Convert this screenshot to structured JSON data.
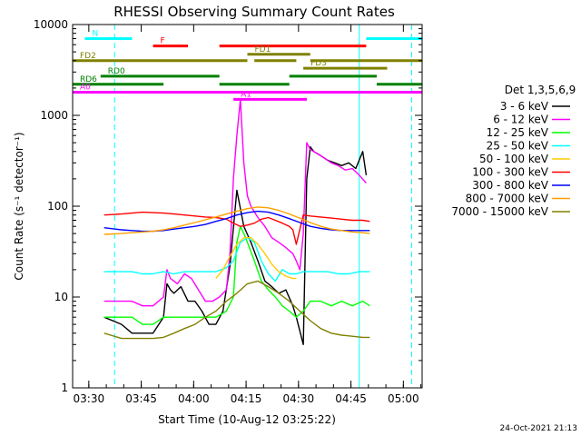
{
  "chart_data": {
    "type": "line",
    "title": "RHESSI Observing Summary Count Rates",
    "xlabel": "Start Time (10-Aug-12 03:25:22)",
    "ylabel": "Count Rate (s⁻¹ detector⁻¹)",
    "ylog": true,
    "ylim": [
      1,
      10000
    ],
    "xlim_minutes_after_0325": [
      0,
      100
    ],
    "x_ticks": [
      "03:30",
      "03:45",
      "04:00",
      "04:15",
      "04:30",
      "04:45",
      "05:00"
    ],
    "y_ticks": [
      "1",
      "10",
      "100",
      "1000",
      "10000"
    ],
    "legend_title": "Det 1,3,5,6,9",
    "legend_position": "right",
    "footer_timestamp": "24-Oct-2021 21:13",
    "flags": [
      {
        "label": "N",
        "color": "#00ffff",
        "ranges": [
          [
            3.5,
            17
          ],
          [
            84,
            100
          ]
        ],
        "level": 7000
      },
      {
        "label": "F",
        "color": "#ff0000",
        "ranges": [
          [
            23,
            33
          ],
          [
            42,
            84
          ]
        ],
        "level": 5800
      },
      {
        "label": "FD1",
        "color": "#808000",
        "ranges": [
          [
            50,
            68
          ]
        ],
        "level": 4700
      },
      {
        "label": "FD2",
        "color": "#808000",
        "ranges": [
          [
            0,
            50
          ],
          [
            52,
            64
          ],
          [
            68,
            100
          ]
        ],
        "level": 4000
      },
      {
        "label": "FD3",
        "color": "#808000",
        "ranges": [
          [
            66,
            90
          ]
        ],
        "level": 3300
      },
      {
        "label": "RD0",
        "color": "#008000",
        "ranges": [
          [
            8,
            42
          ],
          [
            62,
            87
          ]
        ],
        "level": 2700
      },
      {
        "label": "RD6",
        "color": "#008000",
        "ranges": [
          [
            0,
            26
          ],
          [
            42,
            62
          ],
          [
            87,
            100
          ]
        ],
        "level": 2200
      },
      {
        "label": "A0",
        "color": "#ff00ff",
        "ranges": [
          [
            0,
            100
          ]
        ],
        "level": 1800
      },
      {
        "label": "A1",
        "color": "#ff00ff",
        "ranges": [
          [
            46,
            67
          ]
        ],
        "level": 1500
      }
    ],
    "series": [
      {
        "name": "3 - 6 keV",
        "color": "#000000",
        "x": [
          9,
          14,
          17,
          20,
          23,
          26,
          27,
          28,
          29,
          31,
          33,
          35,
          37,
          39,
          41,
          43,
          45,
          47,
          49,
          51,
          53,
          55,
          57,
          59,
          61,
          63,
          64,
          66,
          67,
          68,
          69,
          71,
          73,
          75,
          77,
          79,
          81,
          83,
          84
        ],
        "y": [
          6,
          5,
          4,
          4,
          4,
          6,
          14,
          12,
          11,
          13,
          9,
          9,
          7,
          5,
          5,
          7,
          22,
          150,
          60,
          40,
          25,
          15,
          13,
          11,
          12,
          8,
          6,
          3,
          200,
          450,
          400,
          360,
          320,
          300,
          280,
          300,
          260,
          400,
          220
        ]
      },
      {
        "name": "6 - 12 keV",
        "color": "#ff00ff",
        "x": [
          9,
          14,
          17,
          20,
          23,
          26,
          27,
          28,
          30,
          32,
          34,
          36,
          38,
          40,
          42,
          44,
          45,
          46,
          47,
          48,
          49,
          50,
          51,
          53,
          55,
          57,
          59,
          61,
          63,
          64,
          65,
          66,
          67,
          68,
          70,
          72,
          74,
          76,
          78,
          80,
          82,
          84
        ],
        "y": [
          9,
          9,
          9,
          8,
          8,
          10,
          20,
          16,
          14,
          18,
          16,
          12,
          9,
          9,
          10,
          12,
          30,
          200,
          600,
          1500,
          300,
          130,
          100,
          75,
          60,
          45,
          40,
          35,
          30,
          25,
          20,
          50,
          500,
          420,
          380,
          340,
          300,
          280,
          250,
          260,
          220,
          180
        ]
      },
      {
        "name": "12 - 25 keV",
        "color": "#00ff00",
        "x": [
          9,
          14,
          17,
          20,
          23,
          26,
          29,
          32,
          35,
          38,
          41,
          44,
          46,
          47,
          48,
          49,
          50,
          52,
          54,
          56,
          58,
          60,
          62,
          64,
          66,
          68,
          71,
          74,
          77,
          80,
          83,
          85
        ],
        "y": [
          6,
          6,
          6,
          5,
          5,
          6,
          6,
          6,
          6,
          6,
          6,
          7,
          10,
          40,
          60,
          50,
          40,
          25,
          15,
          12,
          10,
          8,
          7,
          6,
          7,
          9,
          9,
          8,
          9,
          8,
          9,
          8
        ]
      },
      {
        "name": "25 - 50 keV",
        "color": "#00ffff",
        "x": [
          9,
          14,
          17,
          20,
          23,
          26,
          29,
          32,
          35,
          38,
          41,
          44,
          46,
          48,
          50,
          52,
          54,
          56,
          58,
          60,
          62,
          64,
          66,
          68,
          70,
          73,
          76,
          79,
          82,
          85
        ],
        "y": [
          19,
          19,
          19,
          18,
          18,
          19,
          18,
          19,
          19,
          19,
          19,
          21,
          25,
          40,
          45,
          40,
          25,
          18,
          15,
          20,
          18,
          18,
          19,
          19,
          19,
          19,
          18,
          18,
          19,
          19
        ]
      },
      {
        "name": "50 - 100 keV",
        "color": "#ffcc00",
        "x": [
          41,
          43,
          45,
          47,
          49,
          51,
          53,
          55,
          57,
          59,
          61,
          63,
          64
        ],
        "y": [
          16,
          20,
          28,
          38,
          45,
          45,
          38,
          30,
          23,
          19,
          17,
          16,
          16
        ]
      },
      {
        "name": "100 - 300 keV",
        "color": "#ff0000",
        "x": [
          9,
          14,
          17,
          20,
          23,
          26,
          29,
          32,
          35,
          38,
          41,
          44,
          46,
          48,
          50,
          52,
          54,
          56,
          58,
          60,
          62,
          63,
          64,
          66,
          68,
          71,
          74,
          77,
          80,
          83,
          85
        ],
        "y": [
          80,
          82,
          84,
          86,
          85,
          84,
          82,
          80,
          78,
          76,
          75,
          72,
          65,
          60,
          62,
          65,
          72,
          75,
          70,
          65,
          60,
          55,
          38,
          80,
          78,
          76,
          74,
          72,
          70,
          70,
          68
        ]
      },
      {
        "name": "300 - 800 keV",
        "color": "#0000ff",
        "x": [
          9,
          14,
          17,
          20,
          23,
          26,
          29,
          32,
          35,
          38,
          41,
          44,
          47,
          50,
          53,
          56,
          59,
          62,
          65,
          68,
          71,
          74,
          77,
          80,
          83,
          85
        ],
        "y": [
          58,
          55,
          54,
          53,
          53,
          54,
          56,
          58,
          60,
          63,
          68,
          73,
          80,
          85,
          88,
          86,
          80,
          73,
          66,
          60,
          57,
          55,
          54,
          54,
          54,
          54
        ]
      },
      {
        "name": "800 - 7000 keV",
        "color": "#ffa000",
        "x": [
          9,
          14,
          17,
          20,
          23,
          26,
          29,
          32,
          35,
          38,
          41,
          44,
          47,
          50,
          53,
          56,
          59,
          62,
          65,
          68,
          71,
          74,
          77,
          80,
          83,
          85
        ],
        "y": [
          49,
          50,
          51,
          52,
          53,
          55,
          58,
          62,
          66,
          71,
          76,
          82,
          88,
          94,
          98,
          96,
          90,
          82,
          74,
          66,
          60,
          56,
          54,
          52,
          51,
          50
        ]
      },
      {
        "name": "7000 - 15000 keV",
        "color": "#808000",
        "x": [
          9,
          14,
          17,
          20,
          23,
          26,
          29,
          32,
          35,
          38,
          41,
          44,
          47,
          50,
          53,
          56,
          59,
          62,
          65,
          68,
          71,
          74,
          77,
          80,
          83,
          85
        ],
        "y": [
          4,
          3.5,
          3.5,
          3.5,
          3.5,
          3.6,
          4,
          4.5,
          5,
          6,
          7,
          9,
          11,
          14,
          15,
          13,
          11,
          9,
          7,
          5.5,
          4.5,
          4,
          3.8,
          3.7,
          3.6,
          3.6
        ]
      }
    ],
    "vertical_markers": [
      {
        "x": 0,
        "color": "#00ffff",
        "style": "solid"
      },
      {
        "x": 12,
        "color": "#00ffff",
        "style": "dashed"
      },
      {
        "x": 82,
        "color": "#00ffff",
        "style": "solid"
      },
      {
        "x": 97,
        "color": "#00ffff",
        "style": "dashed"
      }
    ]
  }
}
